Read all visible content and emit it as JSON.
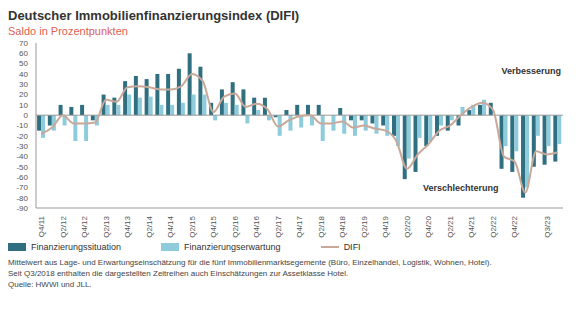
{
  "chart_data": {
    "type": "bar",
    "title": "Deutscher Immobilienfinanzierungsindex (DIFI)",
    "subtitle": "Saldo in Prozentpunkten",
    "categories": [
      "Q4/11",
      null,
      "Q2/12",
      null,
      "Q4/12",
      null,
      "Q2/13",
      null,
      "Q4/13",
      null,
      "Q2/14",
      null,
      "Q4/14",
      null,
      "Q2/15",
      null,
      "Q4/15",
      null,
      "Q2/16",
      null,
      "Q4/16",
      null,
      "Q2/17",
      null,
      "Q4/17",
      null,
      "Q2/18",
      null,
      "Q4/18",
      null,
      "Q2/19",
      null,
      "Q4/19",
      null,
      "Q2/20",
      null,
      "Q4/20",
      null,
      "Q2/21",
      null,
      "Q4/21",
      null,
      "Q2/22",
      null,
      "Q4/22",
      null,
      null,
      "Q3/23",
      null
    ],
    "series": [
      {
        "name": "Finanzierungssituation",
        "color": "#2f6f80",
        "type": "bar",
        "values": [
          -15,
          -10,
          10,
          8,
          10,
          -5,
          20,
          17,
          33,
          38,
          35,
          40,
          40,
          45,
          60,
          47,
          12,
          25,
          32,
          25,
          17,
          17,
          -2,
          5,
          10,
          10,
          10,
          0,
          7,
          -5,
          -5,
          -8,
          -10,
          -20,
          -62,
          -55,
          -30,
          -20,
          -15,
          -10,
          5,
          10,
          12,
          -52,
          -55,
          -80,
          -50,
          -48,
          -45
        ]
      },
      {
        "name": "Finanzierungserwartung",
        "color": "#8ecbdb",
        "type": "bar",
        "values": [
          -22,
          -15,
          -10,
          -25,
          -25,
          -10,
          10,
          10,
          20,
          17,
          18,
          10,
          10,
          12,
          20,
          20,
          -5,
          12,
          10,
          -8,
          5,
          -5,
          -20,
          -15,
          -12,
          -10,
          -25,
          -15,
          -18,
          -20,
          -15,
          -18,
          -20,
          -30,
          -42,
          -22,
          -25,
          -10,
          -5,
          8,
          10,
          15,
          0,
          -30,
          -35,
          -70,
          -20,
          -30,
          -28
        ]
      },
      {
        "name": "DIFI",
        "color": "#c8a898",
        "type": "line",
        "values": [
          -18,
          -12,
          0,
          -8,
          -8,
          -7,
          15,
          13,
          27,
          28,
          27,
          25,
          25,
          28,
          40,
          33,
          3,
          18,
          21,
          8,
          11,
          6,
          -11,
          -5,
          -1,
          0,
          -8,
          -8,
          -6,
          -12,
          -10,
          -13,
          -15,
          -25,
          -52,
          -38,
          -28,
          -15,
          -10,
          0,
          8,
          12,
          5,
          -40,
          -45,
          -75,
          -35,
          -38,
          -36
        ]
      }
    ],
    "ylim": [
      -90,
      70
    ],
    "yticks": [
      -90,
      -80,
      -70,
      -60,
      -50,
      -40,
      -30,
      -20,
      -10,
      0,
      10,
      20,
      30,
      40,
      50,
      60,
      70
    ],
    "grid": false,
    "legend": "bottom left",
    "annotations": [
      {
        "text": "Verbesserung"
      },
      {
        "text": "Verschlechterung"
      }
    ],
    "notes": [
      "Mittelwert aus Lage- und Erwartungseinschätzung für die fünf Immobilienmarktsegemente (Büro, Einzelhandel, Logistik, Wohnen, Hotel).",
      "Seit Q3/2018 enthalten die dargestellten Zeitreihen auch Einschätzungen zur Assetklasse Hotel.",
      "Quelle: HWWI und JLL."
    ]
  }
}
